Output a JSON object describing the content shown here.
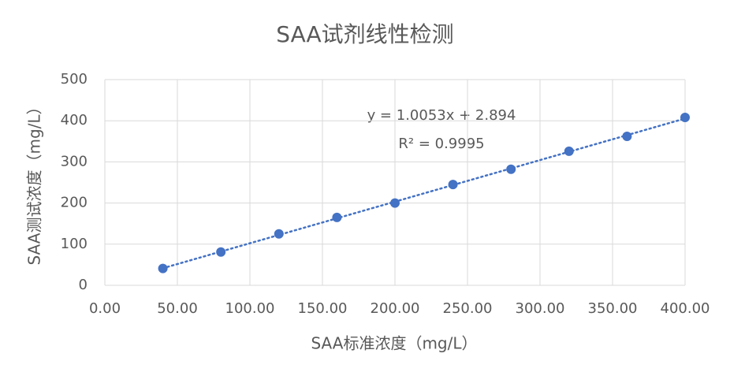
{
  "chart_data": {
    "type": "scatter",
    "title": "SAA试剂线性检测",
    "x_label": "SAA标准浓度（mg/L）",
    "y_label": "SAA测试浓度（mg/L）",
    "annotations": [
      "y = 1.0053x + 2.894",
      "R² = 0.9995"
    ],
    "x": [
      40,
      80,
      120,
      160,
      200,
      240,
      280,
      320,
      360,
      400
    ],
    "series": [
      {
        "color": "#4472c4",
        "values": [
          41,
          81,
          125,
          165,
          200,
          245,
          282,
          326,
          362,
          408
        ]
      }
    ],
    "trendline": true,
    "xlim": [
      0,
      400
    ],
    "xticks": [
      {
        "value": 0,
        "label": "0.00"
      },
      {
        "value": 50,
        "label": "50.00"
      },
      {
        "value": 100,
        "label": "100.00"
      },
      {
        "value": 150,
        "label": "150.00"
      },
      {
        "value": 200,
        "label": "200.00"
      },
      {
        "value": 250,
        "label": "250.00"
      },
      {
        "value": 300,
        "label": "300.00"
      },
      {
        "value": 350,
        "label": "350.00"
      },
      {
        "value": 400,
        "label": "400.00"
      }
    ],
    "ylim": [
      0,
      500
    ],
    "yticks": [
      0,
      100,
      200,
      300,
      400,
      500
    ],
    "grid": true
  }
}
